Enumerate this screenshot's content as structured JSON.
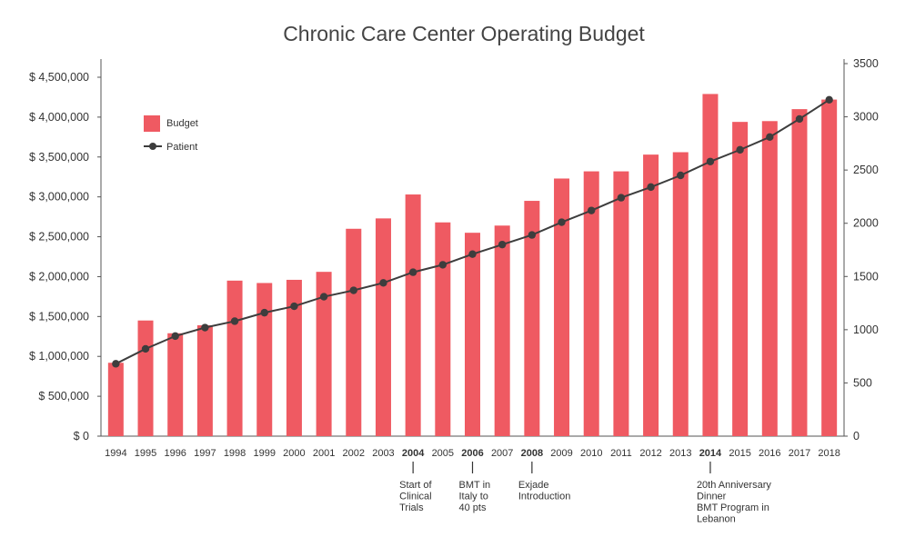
{
  "chart_data": {
    "type": "bar",
    "title": "Chronic Care Center Operating Budget",
    "categories": [
      "1994",
      "1995",
      "1996",
      "1997",
      "1998",
      "1999",
      "2000",
      "2001",
      "2002",
      "2003",
      "2004",
      "2005",
      "2006",
      "2007",
      "2008",
      "2009",
      "2010",
      "2011",
      "2012",
      "2013",
      "2014",
      "2015",
      "2016",
      "2017",
      "2018"
    ],
    "bold_categories": [
      "2004",
      "2006",
      "2008",
      "2014"
    ],
    "series": [
      {
        "name": "Budget",
        "type": "bar",
        "axis": "left",
        "color": "#ef5a62",
        "values": [
          920000,
          1450000,
          1290000,
          1390000,
          1950000,
          1920000,
          1960000,
          2060000,
          2600000,
          2730000,
          3030000,
          2680000,
          2550000,
          2640000,
          2950000,
          3230000,
          3320000,
          3320000,
          3530000,
          3560000,
          4290000,
          3940000,
          3950000,
          4100000,
          4220000
        ]
      },
      {
        "name": "Patient",
        "type": "line",
        "axis": "right",
        "color": "#3d3d3d",
        "values": [
          680,
          820,
          940,
          1020,
          1080,
          1160,
          1220,
          1310,
          1370,
          1440,
          1540,
          1610,
          1710,
          1800,
          1890,
          2010,
          2120,
          2240,
          2340,
          2450,
          2580,
          2690,
          2810,
          2980,
          3160
        ]
      }
    ],
    "y_left": {
      "ylim": [
        0,
        4500000
      ],
      "ticks": [
        0,
        500000,
        1000000,
        1500000,
        2000000,
        2500000,
        3000000,
        3500000,
        4000000,
        4500000
      ],
      "tick_labels": [
        "$ 0",
        "$ 500,000",
        "$ 1,000,000",
        "$ 1,500,000",
        "$ 2,000,000",
        "$ 2,500,000",
        "$ 3,000,000",
        "$ 3,500,000",
        "$ 4,000,000",
        "$ 4,500,000"
      ]
    },
    "y_right": {
      "ylim": [
        0,
        3500
      ],
      "ticks": [
        0,
        500,
        1000,
        1500,
        2000,
        2500,
        3000,
        3500
      ],
      "tick_labels": [
        "0",
        "500",
        "1000",
        "1500",
        "2000",
        "2500",
        "3000",
        "3500"
      ]
    },
    "grid": false,
    "legend_position": "top-left",
    "annotations": [
      {
        "category": "2004",
        "lines": [
          "Start of",
          "Clinical",
          "Trials"
        ]
      },
      {
        "category": "2006",
        "lines": [
          "BMT in",
          "Italy to",
          "40 pts"
        ]
      },
      {
        "category": "2008",
        "lines": [
          "Exjade",
          "Introduction"
        ]
      },
      {
        "category": "2014",
        "lines": [
          "20th Anniversary",
          "Dinner",
          "BMT Program in",
          "Lebanon"
        ]
      }
    ]
  }
}
